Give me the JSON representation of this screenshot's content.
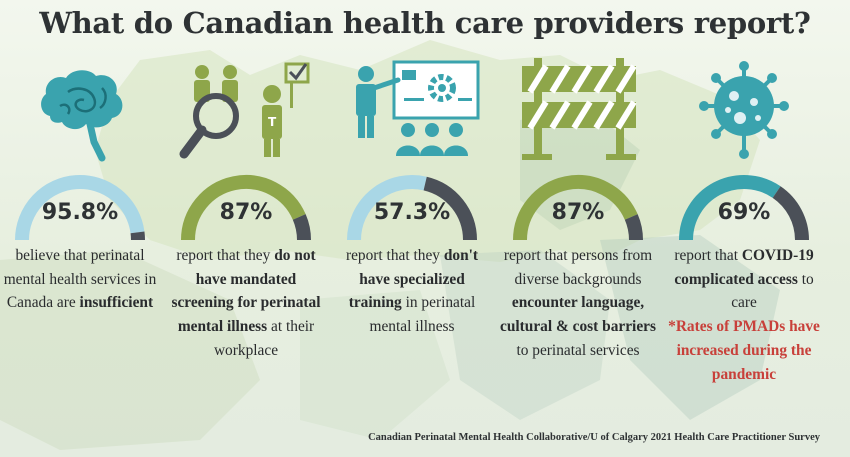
{
  "title": "What do Canadian health care providers report?",
  "colors": {
    "teal": "#3aa3ae",
    "light_blue": "#a9d7e6",
    "green": "#8ea64a",
    "dark_gray": "#4b5058",
    "red": "#c8403a",
    "text": "#2e3234"
  },
  "stats": [
    {
      "percent": "95.8%",
      "value": 95.8,
      "icon": "brain-icon",
      "segments": [
        "believe that ",
        "perinatal mental health services in Canada are ",
        "insufficient"
      ],
      "bold": [
        false,
        false,
        true
      ],
      "note": ""
    },
    {
      "percent": "87%",
      "value": 87,
      "icon": "people-magnifier-icon",
      "segments": [
        "report that they ",
        "do not have mandated screening for perinatal mental illness",
        " at their workplace"
      ],
      "bold": [
        false,
        true,
        false
      ],
      "note": ""
    },
    {
      "percent": "57.3%",
      "value": 57.3,
      "icon": "presentation-training-icon",
      "segments": [
        "report that they ",
        "don't have specialized training",
        " in perinatal mental illness"
      ],
      "bold": [
        false,
        true,
        false
      ],
      "note": ""
    },
    {
      "percent": "87%",
      "value": 87,
      "icon": "barrier-icon",
      "segments": [
        "report that persons from diverse backgrounds ",
        "encounter language, cultural & cost barriers",
        " to perinatal services"
      ],
      "bold": [
        false,
        true,
        false
      ],
      "note": ""
    },
    {
      "percent": "69%",
      "value": 69,
      "icon": "virus-icon",
      "segments": [
        "report that ",
        "COVID-19 complicated access",
        " to care"
      ],
      "bold": [
        false,
        true,
        false
      ],
      "note": "*Rates of PMADs have increased during the pandemic"
    }
  ],
  "credit": "Canadian Perinatal Mental Health Collaborative/U of Calgary 2021 Health Care Practitioner Survey"
}
